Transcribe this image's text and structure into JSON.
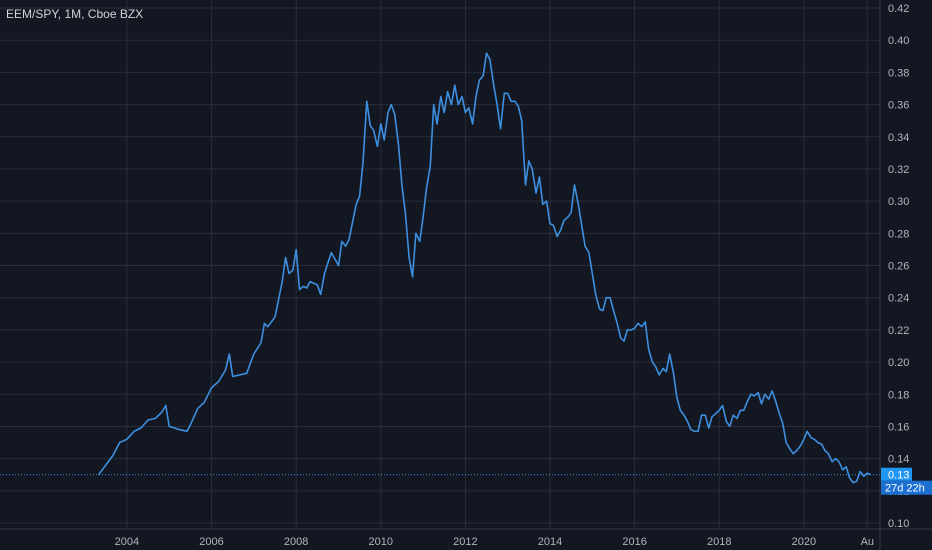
{
  "header": {
    "title": "EEM/SPY, 1M, Cboe BZX"
  },
  "price_scale": {
    "last_price_label": "0.13",
    "countdown_label": "27d 22h",
    "last_price_color": "#2196f3"
  },
  "colors": {
    "background": "#131722",
    "grid": "#2a2e39",
    "line": "#3d8fe0",
    "text": "#b2b5be"
  },
  "chart_data": {
    "type": "line",
    "title": "EEM/SPY, 1M, Cboe BZX",
    "xlabel": "",
    "ylabel": "",
    "grid": true,
    "legend": "none",
    "xlim": [
      2001.0,
      2021.8
    ],
    "ylim": [
      0.1,
      0.42
    ],
    "x_ticks": [
      {
        "value": 2004,
        "label": "2004"
      },
      {
        "value": 2006,
        "label": "2006"
      },
      {
        "value": 2008,
        "label": "2008"
      },
      {
        "value": 2010,
        "label": "2010"
      },
      {
        "value": 2012,
        "label": "2012"
      },
      {
        "value": 2014,
        "label": "2014"
      },
      {
        "value": 2016,
        "label": "2016"
      },
      {
        "value": 2018,
        "label": "2018"
      },
      {
        "value": 2020,
        "label": "2020"
      },
      {
        "value": 2021.5,
        "label": "Au"
      }
    ],
    "y_ticks": [
      {
        "value": 0.1,
        "label": "0.10"
      },
      {
        "value": 0.12,
        "label": "0.12"
      },
      {
        "value": 0.14,
        "label": "0.14"
      },
      {
        "value": 0.16,
        "label": "0.16"
      },
      {
        "value": 0.18,
        "label": "0.18"
      },
      {
        "value": 0.2,
        "label": "0.20"
      },
      {
        "value": 0.22,
        "label": "0.22"
      },
      {
        "value": 0.24,
        "label": "0.24"
      },
      {
        "value": 0.26,
        "label": "0.26"
      },
      {
        "value": 0.28,
        "label": "0.28"
      },
      {
        "value": 0.3,
        "label": "0.30"
      },
      {
        "value": 0.32,
        "label": "0.32"
      },
      {
        "value": 0.34,
        "label": "0.34"
      },
      {
        "value": 0.36,
        "label": "0.36"
      },
      {
        "value": 0.38,
        "label": "0.38"
      },
      {
        "value": 0.4,
        "label": "0.40"
      },
      {
        "value": 0.42,
        "label": "0.42"
      }
    ],
    "last_value": 0.13,
    "series": [
      {
        "points": [
          [
            2003.33,
            0.13
          ],
          [
            2003.5,
            0.136
          ],
          [
            2003.67,
            0.142
          ],
          [
            2003.83,
            0.15
          ],
          [
            2004.0,
            0.152
          ],
          [
            2004.17,
            0.157
          ],
          [
            2004.33,
            0.159
          ],
          [
            2004.5,
            0.164
          ],
          [
            2004.67,
            0.165
          ],
          [
            2004.83,
            0.169
          ],
          [
            2004.92,
            0.173
          ],
          [
            2005.0,
            0.16
          ],
          [
            2005.25,
            0.158
          ],
          [
            2005.42,
            0.157
          ],
          [
            2005.5,
            0.161
          ],
          [
            2005.67,
            0.171
          ],
          [
            2005.83,
            0.175
          ],
          [
            2006.0,
            0.184
          ],
          [
            2006.17,
            0.188
          ],
          [
            2006.33,
            0.195
          ],
          [
            2006.42,
            0.205
          ],
          [
            2006.5,
            0.191
          ],
          [
            2006.67,
            0.192
          ],
          [
            2006.83,
            0.193
          ],
          [
            2007.0,
            0.205
          ],
          [
            2007.17,
            0.212
          ],
          [
            2007.25,
            0.224
          ],
          [
            2007.33,
            0.222
          ],
          [
            2007.5,
            0.228
          ],
          [
            2007.67,
            0.25
          ],
          [
            2007.75,
            0.265
          ],
          [
            2007.83,
            0.255
          ],
          [
            2007.92,
            0.257
          ],
          [
            2008.0,
            0.27
          ],
          [
            2008.08,
            0.245
          ],
          [
            2008.17,
            0.247
          ],
          [
            2008.25,
            0.246
          ],
          [
            2008.33,
            0.25
          ],
          [
            2008.5,
            0.248
          ],
          [
            2008.58,
            0.242
          ],
          [
            2008.67,
            0.255
          ],
          [
            2008.83,
            0.268
          ],
          [
            2009.0,
            0.26
          ],
          [
            2009.08,
            0.275
          ],
          [
            2009.17,
            0.272
          ],
          [
            2009.25,
            0.276
          ],
          [
            2009.42,
            0.298
          ],
          [
            2009.5,
            0.303
          ],
          [
            2009.58,
            0.324
          ],
          [
            2009.67,
            0.362
          ],
          [
            2009.75,
            0.347
          ],
          [
            2009.83,
            0.344
          ],
          [
            2009.92,
            0.334
          ],
          [
            2010.0,
            0.348
          ],
          [
            2010.08,
            0.338
          ],
          [
            2010.17,
            0.355
          ],
          [
            2010.25,
            0.36
          ],
          [
            2010.33,
            0.354
          ],
          [
            2010.42,
            0.335
          ],
          [
            2010.5,
            0.31
          ],
          [
            2010.58,
            0.293
          ],
          [
            2010.67,
            0.265
          ],
          [
            2010.75,
            0.253
          ],
          [
            2010.83,
            0.28
          ],
          [
            2010.92,
            0.275
          ],
          [
            2011.0,
            0.29
          ],
          [
            2011.08,
            0.308
          ],
          [
            2011.17,
            0.322
          ],
          [
            2011.25,
            0.36
          ],
          [
            2011.33,
            0.348
          ],
          [
            2011.42,
            0.365
          ],
          [
            2011.5,
            0.355
          ],
          [
            2011.58,
            0.368
          ],
          [
            2011.67,
            0.36
          ],
          [
            2011.75,
            0.372
          ],
          [
            2011.83,
            0.36
          ],
          [
            2011.92,
            0.365
          ],
          [
            2012.0,
            0.355
          ],
          [
            2012.08,
            0.358
          ],
          [
            2012.17,
            0.348
          ],
          [
            2012.25,
            0.365
          ],
          [
            2012.33,
            0.375
          ],
          [
            2012.42,
            0.378
          ],
          [
            2012.5,
            0.392
          ],
          [
            2012.58,
            0.388
          ],
          [
            2012.67,
            0.372
          ],
          [
            2012.75,
            0.36
          ],
          [
            2012.83,
            0.345
          ],
          [
            2012.92,
            0.367
          ],
          [
            2013.0,
            0.367
          ],
          [
            2013.08,
            0.362
          ],
          [
            2013.17,
            0.362
          ],
          [
            2013.25,
            0.359
          ],
          [
            2013.33,
            0.35
          ],
          [
            2013.42,
            0.31
          ],
          [
            2013.5,
            0.325
          ],
          [
            2013.58,
            0.32
          ],
          [
            2013.67,
            0.305
          ],
          [
            2013.75,
            0.315
          ],
          [
            2013.83,
            0.298
          ],
          [
            2013.92,
            0.3
          ],
          [
            2014.0,
            0.286
          ],
          [
            2014.08,
            0.285
          ],
          [
            2014.17,
            0.278
          ],
          [
            2014.25,
            0.282
          ],
          [
            2014.33,
            0.288
          ],
          [
            2014.42,
            0.29
          ],
          [
            2014.5,
            0.293
          ],
          [
            2014.58,
            0.31
          ],
          [
            2014.67,
            0.298
          ],
          [
            2014.75,
            0.285
          ],
          [
            2014.83,
            0.272
          ],
          [
            2014.92,
            0.268
          ],
          [
            2015.0,
            0.255
          ],
          [
            2015.08,
            0.242
          ],
          [
            2015.17,
            0.233
          ],
          [
            2015.25,
            0.232
          ],
          [
            2015.33,
            0.24
          ],
          [
            2015.42,
            0.24
          ],
          [
            2015.5,
            0.232
          ],
          [
            2015.58,
            0.225
          ],
          [
            2015.67,
            0.215
          ],
          [
            2015.75,
            0.213
          ],
          [
            2015.83,
            0.22
          ],
          [
            2015.92,
            0.22
          ],
          [
            2016.0,
            0.221
          ],
          [
            2016.08,
            0.224
          ],
          [
            2016.17,
            0.222
          ],
          [
            2016.25,
            0.225
          ],
          [
            2016.33,
            0.208
          ],
          [
            2016.42,
            0.2
          ],
          [
            2016.5,
            0.197
          ],
          [
            2016.58,
            0.192
          ],
          [
            2016.67,
            0.196
          ],
          [
            2016.75,
            0.194
          ],
          [
            2016.83,
            0.205
          ],
          [
            2016.92,
            0.193
          ],
          [
            2017.0,
            0.178
          ],
          [
            2017.08,
            0.17
          ],
          [
            2017.17,
            0.167
          ],
          [
            2017.25,
            0.163
          ],
          [
            2017.33,
            0.158
          ],
          [
            2017.42,
            0.157
          ],
          [
            2017.5,
            0.157
          ],
          [
            2017.58,
            0.167
          ],
          [
            2017.67,
            0.167
          ],
          [
            2017.75,
            0.159
          ],
          [
            2017.83,
            0.166
          ],
          [
            2017.92,
            0.168
          ],
          [
            2018.0,
            0.17
          ],
          [
            2018.08,
            0.173
          ],
          [
            2018.17,
            0.163
          ],
          [
            2018.25,
            0.16
          ],
          [
            2018.33,
            0.167
          ],
          [
            2018.42,
            0.165
          ],
          [
            2018.5,
            0.17
          ],
          [
            2018.58,
            0.17
          ],
          [
            2018.67,
            0.176
          ],
          [
            2018.75,
            0.18
          ],
          [
            2018.83,
            0.179
          ],
          [
            2018.92,
            0.181
          ],
          [
            2019.0,
            0.174
          ],
          [
            2019.08,
            0.18
          ],
          [
            2019.17,
            0.177
          ],
          [
            2019.25,
            0.182
          ],
          [
            2019.33,
            0.176
          ],
          [
            2019.42,
            0.168
          ],
          [
            2019.5,
            0.162
          ],
          [
            2019.58,
            0.15
          ],
          [
            2019.67,
            0.146
          ],
          [
            2019.75,
            0.143
          ],
          [
            2019.83,
            0.145
          ],
          [
            2019.92,
            0.148
          ],
          [
            2020.0,
            0.152
          ],
          [
            2020.08,
            0.157
          ],
          [
            2020.17,
            0.153
          ],
          [
            2020.25,
            0.152
          ],
          [
            2020.33,
            0.15
          ],
          [
            2020.42,
            0.149
          ],
          [
            2020.5,
            0.145
          ],
          [
            2020.58,
            0.143
          ],
          [
            2020.67,
            0.138
          ],
          [
            2020.75,
            0.14
          ],
          [
            2020.83,
            0.138
          ],
          [
            2020.92,
            0.133
          ],
          [
            2021.0,
            0.135
          ],
          [
            2021.08,
            0.128
          ],
          [
            2021.17,
            0.125
          ],
          [
            2021.25,
            0.126
          ],
          [
            2021.33,
            0.132
          ],
          [
            2021.42,
            0.129
          ],
          [
            2021.5,
            0.131
          ],
          [
            2021.58,
            0.13
          ]
        ]
      }
    ]
  }
}
